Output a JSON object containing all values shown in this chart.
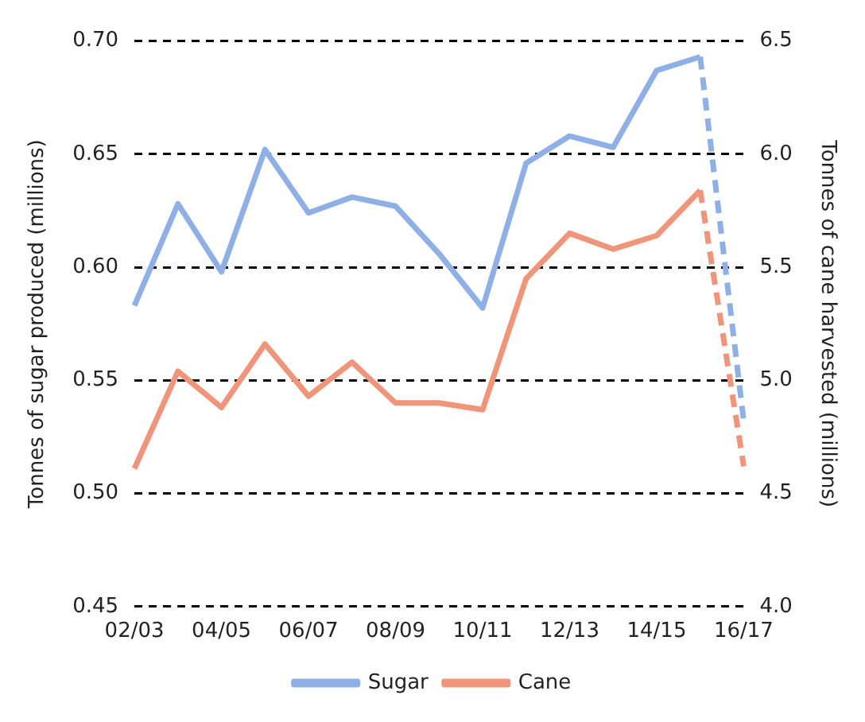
{
  "chart_data": {
    "type": "line",
    "ylabel": "Tonnes of sugar produced (millions)",
    "y2label": "Tonnes of cane harvested (millions)",
    "categories": [
      "02/03",
      null,
      "04/05",
      null,
      "06/07",
      null,
      "08/09",
      null,
      "10/11",
      null,
      "12/13",
      null,
      "14/15",
      null,
      "16/17"
    ],
    "series": [
      {
        "name": "Sugar",
        "color": "#8fb0e6",
        "line_style": "solid",
        "values": [
          0.583,
          0.628,
          0.598,
          0.652,
          0.624,
          0.631,
          0.627,
          0.606,
          0.582,
          0.646,
          0.658,
          0.653,
          0.687,
          0.693,
          null
        ]
      },
      {
        "name": "Cane",
        "color": "#f0947a",
        "axis": "y2",
        "line_style": "solid",
        "values": [
          4.61,
          5.04,
          4.88,
          5.16,
          4.93,
          5.08,
          4.9,
          4.9,
          4.87,
          5.45,
          5.65,
          5.58,
          5.64,
          5.84,
          null
        ]
      },
      {
        "color": "#8fb0e6",
        "line_style": "dashed",
        "values": [
          null,
          null,
          null,
          null,
          null,
          null,
          null,
          null,
          null,
          null,
          null,
          null,
          null,
          0.693,
          0.532
        ]
      },
      {
        "color": "#f0947a",
        "axis": "y2",
        "line_style": "dashed",
        "values": [
          null,
          null,
          null,
          null,
          null,
          null,
          null,
          null,
          null,
          null,
          null,
          null,
          null,
          5.84,
          4.62
        ]
      }
    ],
    "ylim": [
      0.45,
      0.7
    ],
    "yticks": [
      {
        "value": 0.45,
        "label": "0.45"
      },
      {
        "value": 0.5,
        "label": "0.50"
      },
      {
        "value": 0.55,
        "label": "0.55"
      },
      {
        "value": 0.6,
        "label": "0.60"
      },
      {
        "value": 0.65,
        "label": "0.65"
      },
      {
        "value": 0.7,
        "label": "0.70"
      }
    ],
    "y2lim": [
      4,
      6.5
    ],
    "y2ticks": [
      {
        "value": 4,
        "label": "4.0"
      },
      {
        "value": 4.5,
        "label": "4.5"
      },
      {
        "value": 5,
        "label": "5.0"
      },
      {
        "value": 5.5,
        "label": "5.5"
      },
      {
        "value": 6,
        "label": "6.0"
      },
      {
        "value": 6.5,
        "label": "6.5"
      }
    ],
    "grid": "y",
    "legend": "bottom",
    "marker": "none"
  }
}
